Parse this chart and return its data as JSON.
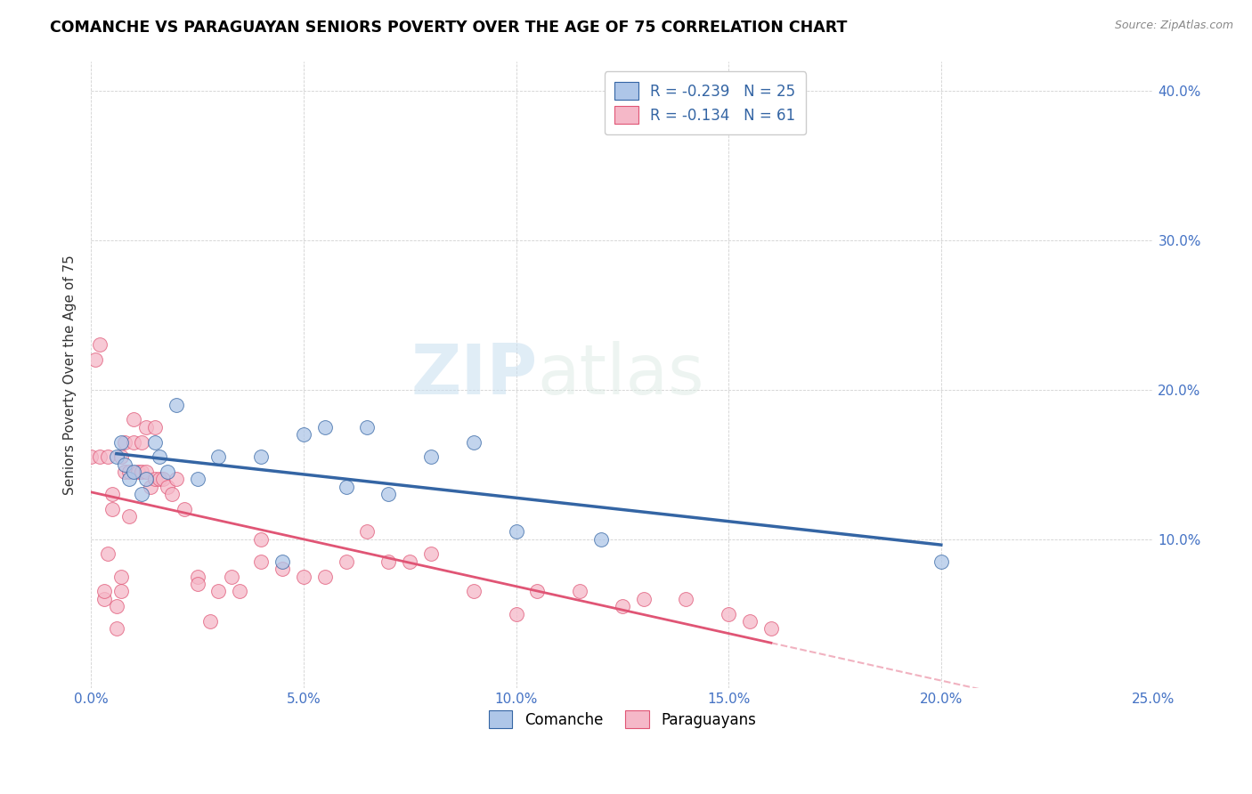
{
  "title": "COMANCHE VS PARAGUAYAN SENIORS POVERTY OVER THE AGE OF 75 CORRELATION CHART",
  "source": "Source: ZipAtlas.com",
  "ylabel": "Seniors Poverty Over the Age of 75",
  "xlim": [
    0.0,
    0.25
  ],
  "ylim": [
    0.0,
    0.42
  ],
  "xticks": [
    0.0,
    0.05,
    0.1,
    0.15,
    0.2,
    0.25
  ],
  "yticks": [
    0.0,
    0.1,
    0.2,
    0.3,
    0.4
  ],
  "comanche_R": -0.239,
  "comanche_N": 25,
  "paraguayan_R": -0.134,
  "paraguayan_N": 61,
  "comanche_color": "#aec6e8",
  "paraguayan_color": "#f5b8c8",
  "comanche_line_color": "#3465a4",
  "paraguayan_line_color": "#e05575",
  "watermark_zip": "ZIP",
  "watermark_atlas": "atlas",
  "comanche_x": [
    0.006,
    0.007,
    0.008,
    0.009,
    0.01,
    0.012,
    0.013,
    0.015,
    0.016,
    0.018,
    0.02,
    0.025,
    0.03,
    0.04,
    0.045,
    0.05,
    0.055,
    0.06,
    0.065,
    0.07,
    0.08,
    0.09,
    0.1,
    0.12,
    0.2
  ],
  "comanche_y": [
    0.155,
    0.165,
    0.15,
    0.14,
    0.145,
    0.13,
    0.14,
    0.165,
    0.155,
    0.145,
    0.19,
    0.14,
    0.155,
    0.155,
    0.085,
    0.17,
    0.175,
    0.135,
    0.175,
    0.13,
    0.155,
    0.165,
    0.105,
    0.1,
    0.085
  ],
  "paraguayan_x": [
    0.0,
    0.001,
    0.002,
    0.002,
    0.003,
    0.003,
    0.004,
    0.004,
    0.005,
    0.005,
    0.006,
    0.006,
    0.007,
    0.007,
    0.007,
    0.008,
    0.008,
    0.009,
    0.009,
    0.01,
    0.01,
    0.011,
    0.012,
    0.012,
    0.013,
    0.013,
    0.014,
    0.015,
    0.015,
    0.016,
    0.017,
    0.018,
    0.019,
    0.02,
    0.022,
    0.025,
    0.025,
    0.028,
    0.03,
    0.033,
    0.035,
    0.04,
    0.04,
    0.045,
    0.05,
    0.055,
    0.06,
    0.065,
    0.07,
    0.075,
    0.08,
    0.09,
    0.1,
    0.105,
    0.115,
    0.125,
    0.13,
    0.14,
    0.15,
    0.155,
    0.16
  ],
  "paraguayan_y": [
    0.155,
    0.22,
    0.155,
    0.23,
    0.06,
    0.065,
    0.09,
    0.155,
    0.13,
    0.12,
    0.04,
    0.055,
    0.065,
    0.075,
    0.155,
    0.145,
    0.165,
    0.145,
    0.115,
    0.18,
    0.165,
    0.145,
    0.165,
    0.145,
    0.175,
    0.145,
    0.135,
    0.175,
    0.14,
    0.14,
    0.14,
    0.135,
    0.13,
    0.14,
    0.12,
    0.075,
    0.07,
    0.045,
    0.065,
    0.075,
    0.065,
    0.085,
    0.1,
    0.08,
    0.075,
    0.075,
    0.085,
    0.105,
    0.085,
    0.085,
    0.09,
    0.065,
    0.05,
    0.065,
    0.065,
    0.055,
    0.06,
    0.06,
    0.05,
    0.045,
    0.04
  ]
}
